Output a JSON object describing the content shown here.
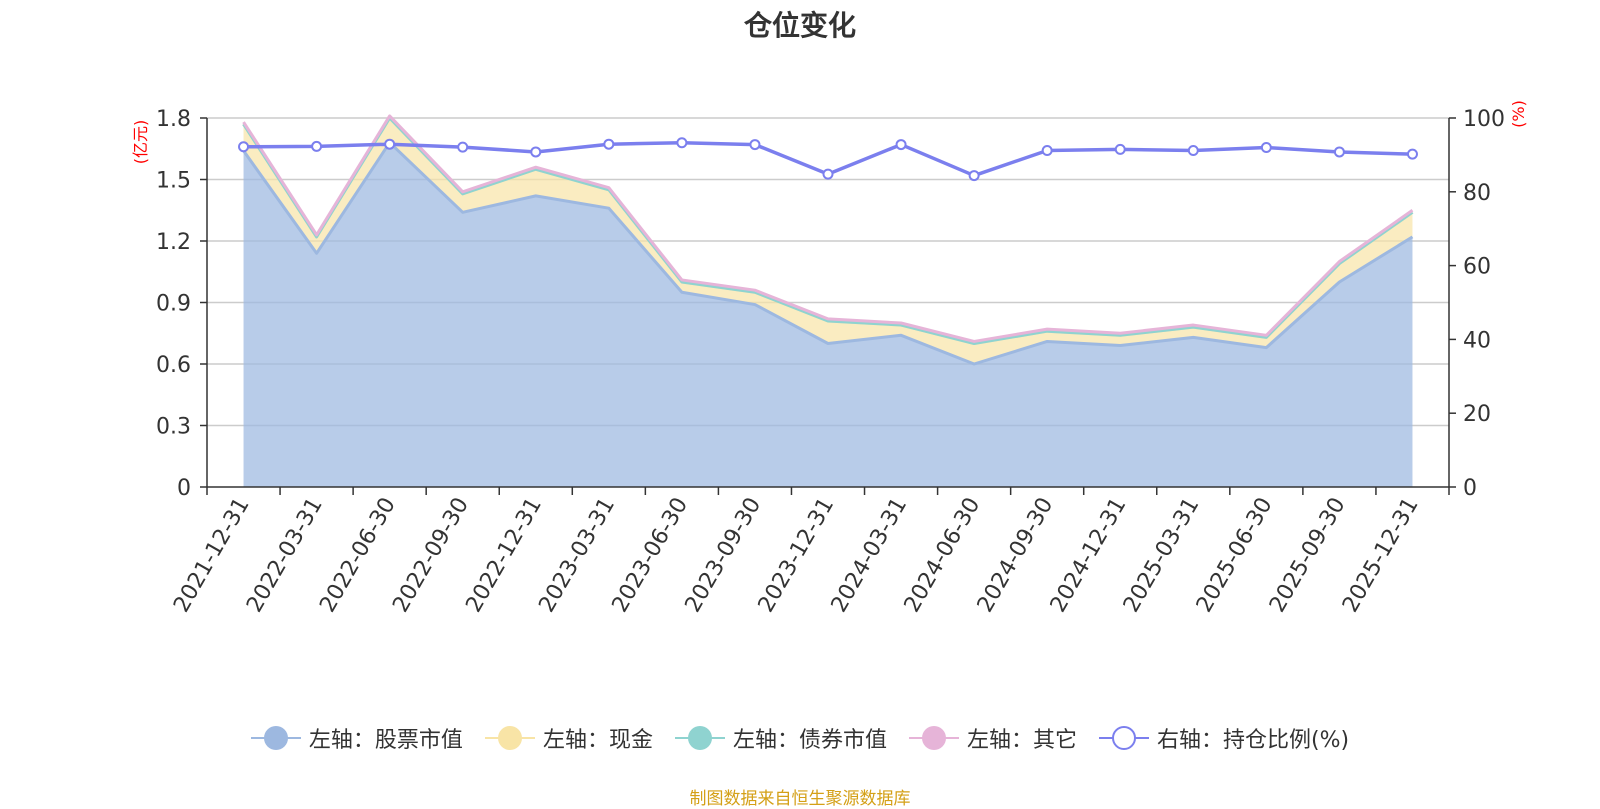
{
  "chart_data": {
    "type": "area",
    "title": "仓位变化",
    "left_axis_unit": "(亿元)",
    "right_axis_unit": "(%)",
    "left_ylim": [
      0,
      1.8
    ],
    "left_ticks": [
      "0",
      "0.3",
      "0.6",
      "0.9",
      "1.2",
      "1.5",
      "1.8"
    ],
    "right_ylim": [
      0,
      100
    ],
    "right_ticks": [
      "0",
      "20",
      "40",
      "60",
      "80",
      "100"
    ],
    "categories": [
      "2021-12-31",
      "2022-03-31",
      "2022-06-30",
      "2022-09-30",
      "2022-12-31",
      "2023-03-31",
      "2023-06-30",
      "2023-09-30",
      "2023-12-31",
      "2024-03-31",
      "2024-06-30",
      "2024-09-30",
      "2024-12-31",
      "2025-03-31",
      "2025-06-30",
      "2025-09-30",
      "2025-12-31"
    ],
    "series": [
      {
        "name": "左轴：股票市值",
        "axis": "left",
        "kind": "stacked-area",
        "color": "#9db8e0",
        "values": [
          1.64,
          1.14,
          1.68,
          1.34,
          1.42,
          1.36,
          0.95,
          0.89,
          0.7,
          0.74,
          0.6,
          0.71,
          0.69,
          0.73,
          0.68,
          1.0,
          1.22
        ]
      },
      {
        "name": "左轴：现金",
        "axis": "left",
        "kind": "stacked-area",
        "color": "#f8e4a6",
        "values": [
          0.13,
          0.08,
          0.12,
          0.09,
          0.13,
          0.09,
          0.05,
          0.06,
          0.11,
          0.05,
          0.1,
          0.05,
          0.05,
          0.05,
          0.05,
          0.09,
          0.12
        ]
      },
      {
        "name": "左轴：债券市值",
        "axis": "left",
        "kind": "stacked-area",
        "color": "#8fd3d0",
        "values": [
          0,
          0,
          0,
          0,
          0,
          0,
          0,
          0,
          0,
          0,
          0,
          0,
          0,
          0,
          0,
          0,
          0
        ]
      },
      {
        "name": "左轴：其它",
        "axis": "left",
        "kind": "stacked-area",
        "color": "#e6b4d8",
        "values": [
          0.01,
          0.01,
          0.01,
          0.01,
          0.01,
          0.01,
          0.01,
          0.01,
          0.01,
          0.01,
          0.01,
          0.01,
          0.01,
          0.01,
          0.01,
          0.01,
          0.01
        ]
      },
      {
        "name": "右轴：持仓比例(%)",
        "axis": "right",
        "kind": "line",
        "color": "#7b7fee",
        "values": [
          92.2,
          92.3,
          92.9,
          92.1,
          90.8,
          92.9,
          93.3,
          92.8,
          84.8,
          92.8,
          84.4,
          91.2,
          91.5,
          91.2,
          92.0,
          90.8,
          90.2
        ]
      }
    ]
  },
  "footer": {
    "source_text": "制图数据来自恒生聚源数据库"
  }
}
